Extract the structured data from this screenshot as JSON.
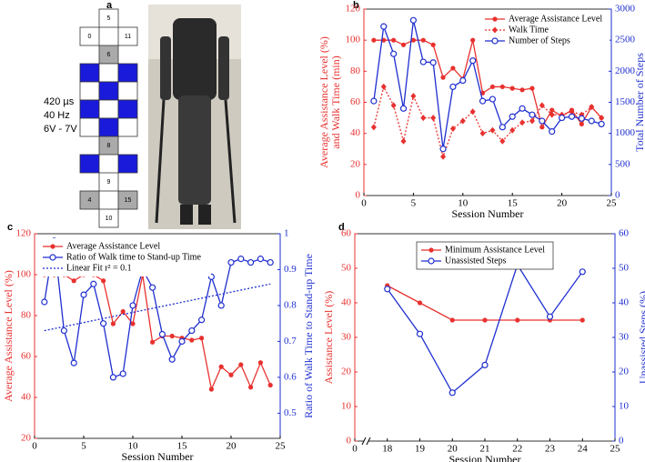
{
  "panel_a": {
    "label": "a",
    "electrodes": [
      "5",
      "0",
      "11",
      "6",
      "8",
      "9",
      "4",
      "15",
      "10"
    ],
    "stim_params": [
      "420 µs",
      "40 Hz",
      "6V - 7V"
    ]
  },
  "chart_data": [
    {
      "type": "line",
      "panel_label": "b",
      "xlabel": "Session Number",
      "ylabel": [
        "Average Assistance Level (%)",
        "and Walk Time (min)"
      ],
      "y2label": "Total Number of Steps",
      "x": [
        1,
        2,
        3,
        4,
        5,
        6,
        7,
        8,
        9,
        10,
        11,
        12,
        13,
        14,
        15,
        16,
        17,
        18,
        19,
        20,
        21,
        22,
        23,
        24
      ],
      "xlim": [
        0,
        25
      ],
      "xticks": [
        0,
        5,
        10,
        15,
        20,
        25
      ],
      "ylim": [
        0,
        120
      ],
      "yticks": [
        0,
        20,
        40,
        60,
        80,
        100,
        120
      ],
      "y2lim": [
        0,
        3000
      ],
      "y2ticks": [
        0,
        500,
        1000,
        1500,
        2000,
        2500,
        3000
      ],
      "legend": "upper right",
      "series": [
        {
          "name": "Average Assistance Level",
          "color": "#e8312f",
          "marker": "dot",
          "dash": "solid",
          "values": [
            100,
            100,
            100,
            97,
            100,
            100,
            97,
            76,
            82,
            75,
            100,
            66,
            70,
            70,
            69,
            68,
            69,
            44,
            55,
            51,
            55,
            46,
            57,
            50
          ]
        },
        {
          "name": "Walk Time",
          "color": "#e8312f",
          "marker": "diamond",
          "dash": "dotted",
          "values": [
            44,
            70,
            58,
            35,
            64,
            50,
            50,
            25,
            43,
            48,
            54,
            40,
            42,
            35,
            42,
            47,
            48,
            58,
            52,
            52,
            54,
            52,
            57,
            50
          ]
        },
        {
          "name": "Number of Steps",
          "color": "#1f2fcf",
          "marker": "open",
          "dash": "solid",
          "axis": "y2",
          "values": [
            1520,
            2720,
            2280,
            1400,
            2820,
            2150,
            2140,
            750,
            1750,
            1850,
            2170,
            1520,
            1550,
            1100,
            1270,
            1400,
            1300,
            1200,
            1030,
            1250,
            1270,
            1240,
            1200,
            1150
          ]
        }
      ]
    },
    {
      "type": "line",
      "panel_label": "c",
      "xlabel": "Session Number",
      "ylabel": "Average Assistance Level (%)",
      "y2label": "Ratio of Walk Time to Stand-up Time",
      "x": [
        1,
        2,
        3,
        4,
        5,
        6,
        7,
        8,
        9,
        10,
        11,
        12,
        13,
        14,
        15,
        16,
        17,
        18,
        19,
        20,
        21,
        22,
        23,
        24
      ],
      "xlim": [
        0,
        25
      ],
      "xticks": [
        0,
        5,
        10,
        15,
        20,
        25
      ],
      "ylim": [
        20,
        120
      ],
      "yticks": [
        20,
        40,
        60,
        80,
        100,
        120
      ],
      "y2lim": [
        0.43,
        1
      ],
      "y2ticks": [
        0.5,
        0.6,
        0.7,
        0.8,
        0.9,
        1
      ],
      "legend": "upper left",
      "series": [
        {
          "name": "Average Assistance Level",
          "color": "#e8312f",
          "marker": "dot",
          "dash": "solid",
          "values": [
            100,
            100,
            100,
            97,
            100,
            100,
            97,
            76,
            82,
            76,
            100,
            67,
            70,
            70,
            69,
            68,
            69,
            44,
            55,
            51,
            56,
            45,
            57,
            46
          ]
        },
        {
          "name": "Ratio of Walk time to Stand-up Time",
          "color": "#1f2fcf",
          "marker": "open",
          "dash": "solid",
          "axis": "y2",
          "values": [
            0.81,
            0.98,
            0.73,
            0.64,
            0.83,
            0.86,
            0.75,
            0.6,
            0.61,
            0.8,
            0.9,
            0.85,
            0.72,
            0.65,
            0.7,
            0.73,
            0.76,
            0.88,
            0.8,
            0.92,
            0.93,
            0.92,
            0.93,
            0.92
          ]
        },
        {
          "name": "Linear Fit r² = 0.1",
          "color": "#1f2fcf",
          "marker": "none",
          "dash": "dotted",
          "axis": "y2",
          "x": [
            1,
            24
          ],
          "values": [
            0.73,
            0.86
          ]
        }
      ]
    },
    {
      "type": "line",
      "panel_label": "d",
      "xlabel": "Session Number",
      "ylabel": "Assistance Level (%)",
      "y2label": "Unassisted Steps (%)",
      "x": [
        18,
        19,
        20,
        21,
        22,
        23,
        24
      ],
      "xlim": [
        17,
        25
      ],
      "xticks": [
        0,
        18,
        19,
        20,
        21,
        22,
        23,
        24,
        25
      ],
      "x_break": true,
      "ylim": [
        0,
        60
      ],
      "yticks": [
        0,
        10,
        20,
        30,
        40,
        50,
        60
      ],
      "y2lim": [
        0,
        60
      ],
      "y2ticks": [
        0,
        10,
        20,
        30,
        40,
        50,
        60
      ],
      "legend": "upper center",
      "series": [
        {
          "name": "Minimum Assistance Level",
          "color": "#e8312f",
          "marker": "dot",
          "dash": "solid",
          "values": [
            45,
            40,
            35,
            35,
            35,
            35,
            35
          ]
        },
        {
          "name": "Unassisted Steps",
          "color": "#1f2fcf",
          "marker": "open",
          "dash": "solid",
          "axis": "y2",
          "values": [
            44,
            31,
            14,
            22,
            51,
            36,
            49
          ]
        }
      ]
    }
  ]
}
